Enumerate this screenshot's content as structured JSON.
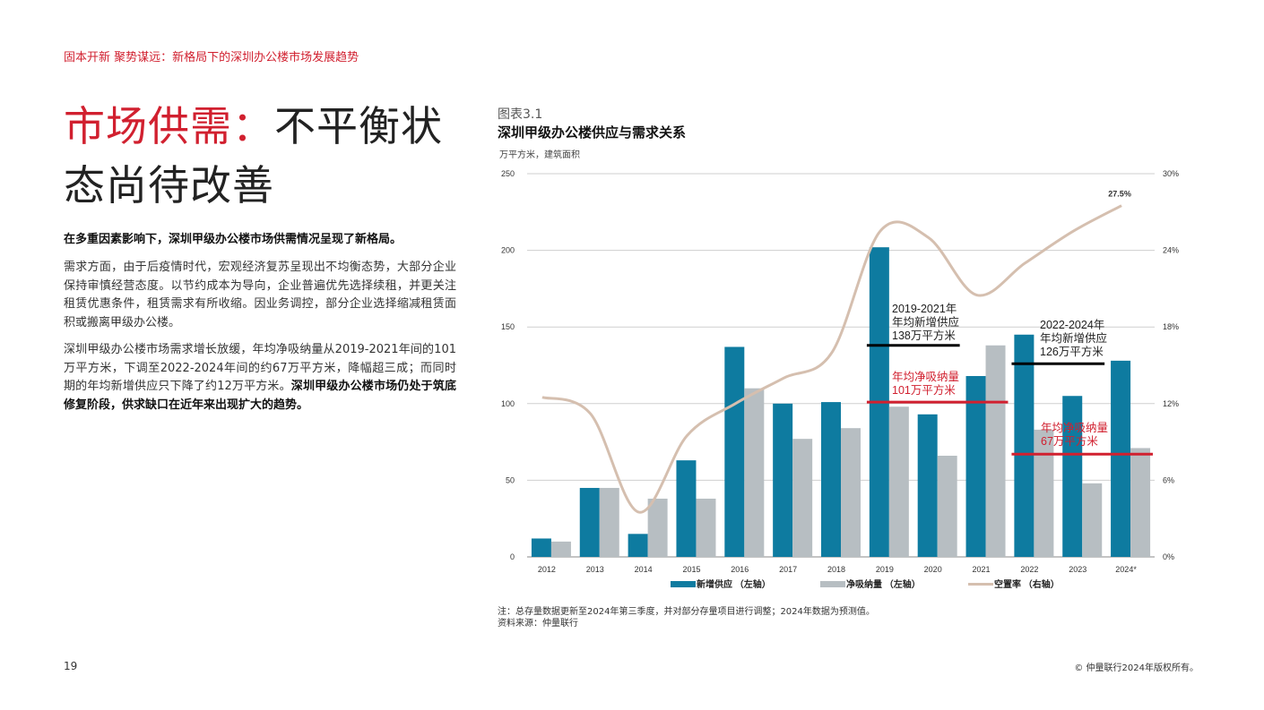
{
  "header": {
    "running_title": "固本开新 聚势谋远：新格局下的深圳办公楼市场发展趋势"
  },
  "title": {
    "highlight": "市场供需：",
    "rest": "不平衡状态尚待改善"
  },
  "body": {
    "lead": "在多重因素影响下，深圳甲级办公楼市场供需情况呈现了新格局。",
    "p1": "需求方面，由于后疫情时代，宏观经济复苏呈现出不均衡态势，大部分企业保持审慎经营态度。以节约成本为导向，企业普遍优先选择续租，并更关注租赁优惠条件，租赁需求有所收缩。因业务调控，部分企业选择缩减租赁面积或搬离甲级办公楼。",
    "p2_normal": "深圳甲级办公楼市场需求增长放缓，年均净吸纳量从2019-2021年间的101万平方米，下调至2022-2024年间的约67万平方米，降幅超三成；而同时期的年均新增供应只下降了约12万平方米。",
    "p2_bold": "深圳甲级办公楼市场仍处于筑底修复阶段，供求缺口在近年来出现扩大的趋势。"
  },
  "figure": {
    "label": "图表3.1",
    "title": "深圳甲级办公楼供应与需求关系",
    "unit": "万平方米，建筑面积",
    "note": "注：总存量数据更新至2024年第三季度，并对部分存量项目进行调整；2024年数据为预测值。",
    "source": "资料来源：仲量联行"
  },
  "chart_data": {
    "type": "bar",
    "categories": [
      "2012",
      "2013",
      "2014",
      "2015",
      "2016",
      "2017",
      "2018",
      "2019",
      "2020",
      "2021",
      "2022",
      "2023",
      "2024*"
    ],
    "series": [
      {
        "name": "新增供应 （左轴）",
        "type": "bar",
        "axis": "left",
        "color": "#0e7ba0",
        "values": [
          12,
          45,
          15,
          63,
          137,
          100,
          101,
          202,
          93,
          118,
          145,
          105,
          128
        ]
      },
      {
        "name": "净吸纳量 （左轴）",
        "type": "bar",
        "axis": "left",
        "color": "#b7bec2",
        "values": [
          10,
          45,
          38,
          38,
          110,
          77,
          84,
          98,
          66,
          138,
          83,
          48,
          71
        ]
      },
      {
        "name": "空置率 （右轴）",
        "type": "line",
        "axis": "right",
        "color": "#d5bfaf",
        "values": [
          12.5,
          11.2,
          3.5,
          9.5,
          12.0,
          14.0,
          16.0,
          25.5,
          25.0,
          20.5,
          23.0,
          25.5,
          27.5
        ]
      }
    ],
    "y_left": {
      "lim": [
        0,
        250
      ],
      "ticks": [
        "250",
        "200",
        "150",
        "100",
        "50",
        "0"
      ]
    },
    "y_right": {
      "lim": [
        0,
        30
      ],
      "ticks": [
        "30%",
        "24%",
        "18%",
        "12%",
        "6%",
        "0%"
      ]
    },
    "end_label": "27.5%",
    "grid": true,
    "legend_placement": "bottom",
    "annotations": [
      {
        "text": [
          "2019-2021年",
          "年均新增供应",
          "138万平方米"
        ],
        "color": "#222",
        "line_value": 138,
        "line_color": "#000000"
      },
      {
        "text": [
          "年均净吸纳量",
          "101万平方米"
        ],
        "color": "#d1202f",
        "line_value": 101,
        "line_color": "#d1202f"
      },
      {
        "text": [
          "2022-2024年",
          "年均新增供应",
          "126万平方米"
        ],
        "color": "#222",
        "line_value": 126,
        "line_color": "#000000"
      },
      {
        "text": [
          "年均净吸纳量",
          "67万平方米"
        ],
        "color": "#d1202f",
        "line_value": 67,
        "line_color": "#d1202f"
      }
    ]
  },
  "footer": {
    "page_number": "19",
    "copyright": "© 仲量联行2024年版权所有。"
  }
}
